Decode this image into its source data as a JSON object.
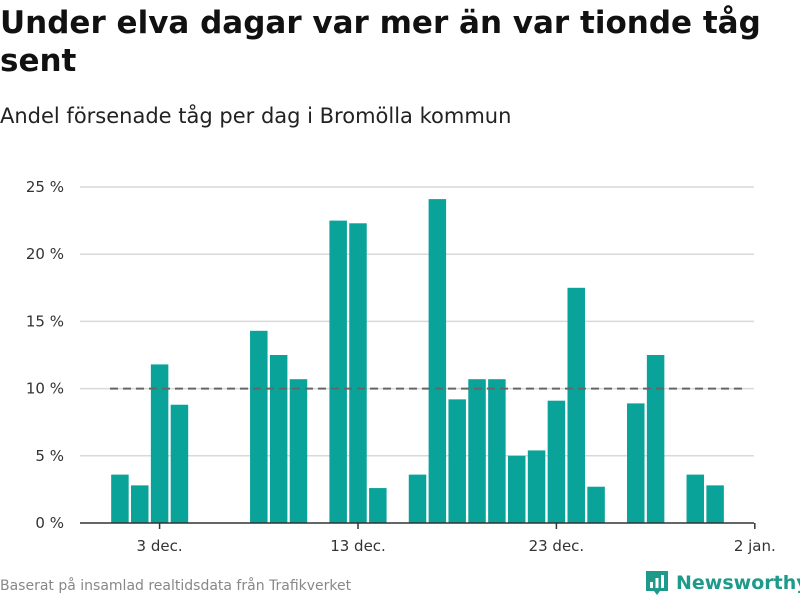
{
  "header": {
    "title": "Under elva dagar var mer än var tionde tåg sent",
    "subtitle": "Andel försenade tåg per dag i Bromölla kommun"
  },
  "footer": {
    "source": "Baserat på insamlad realtidsdata från Trafikverket",
    "brand": "Newsworthy",
    "brand_icon": "bar-chart-logo-icon"
  },
  "colors": {
    "bar": "#0aa39a",
    "reference_line": "#666666",
    "grid": "#d9d9d9",
    "axis": "#333333",
    "brand": "#1d9a8a"
  },
  "chart_data": {
    "type": "bar",
    "x_start": "2022-12-01",
    "x_end": "2023-01-02",
    "x": [
      "2022-12-01",
      "2022-12-02",
      "2022-12-03",
      "2022-12-04",
      "2022-12-05",
      "2022-12-06",
      "2022-12-07",
      "2022-12-08",
      "2022-12-09",
      "2022-12-10",
      "2022-12-11",
      "2022-12-12",
      "2022-12-13",
      "2022-12-14",
      "2022-12-15",
      "2022-12-16",
      "2022-12-17",
      "2022-12-18",
      "2022-12-19",
      "2022-12-20",
      "2022-12-21",
      "2022-12-22",
      "2022-12-23",
      "2022-12-24",
      "2022-12-25",
      "2022-12-26",
      "2022-12-27",
      "2022-12-28",
      "2022-12-29",
      "2022-12-30",
      "2022-12-31",
      "2023-01-01"
    ],
    "values": [
      3.6,
      2.8,
      11.8,
      8.8,
      null,
      null,
      null,
      14.3,
      12.5,
      10.7,
      null,
      22.5,
      22.3,
      2.6,
      null,
      3.6,
      24.1,
      9.2,
      10.7,
      10.7,
      5.0,
      5.4,
      9.1,
      17.5,
      2.7,
      null,
      8.9,
      12.5,
      null,
      3.6,
      2.8,
      null
    ],
    "reference_line": 10,
    "ylim": [
      0,
      25
    ],
    "y_ticks": [
      0,
      5,
      10,
      15,
      20,
      25
    ],
    "y_tick_labels": [
      "0 %",
      "5 %",
      "10 %",
      "15 %",
      "20 %",
      "25 %"
    ],
    "x_ticks": [
      "2022-12-03",
      "2022-12-13",
      "2022-12-23",
      "2023-01-02"
    ],
    "x_tick_labels": [
      "3 dec.",
      "13 dec.",
      "23 dec.",
      "2 jan."
    ],
    "grid": true,
    "legend": "none"
  }
}
